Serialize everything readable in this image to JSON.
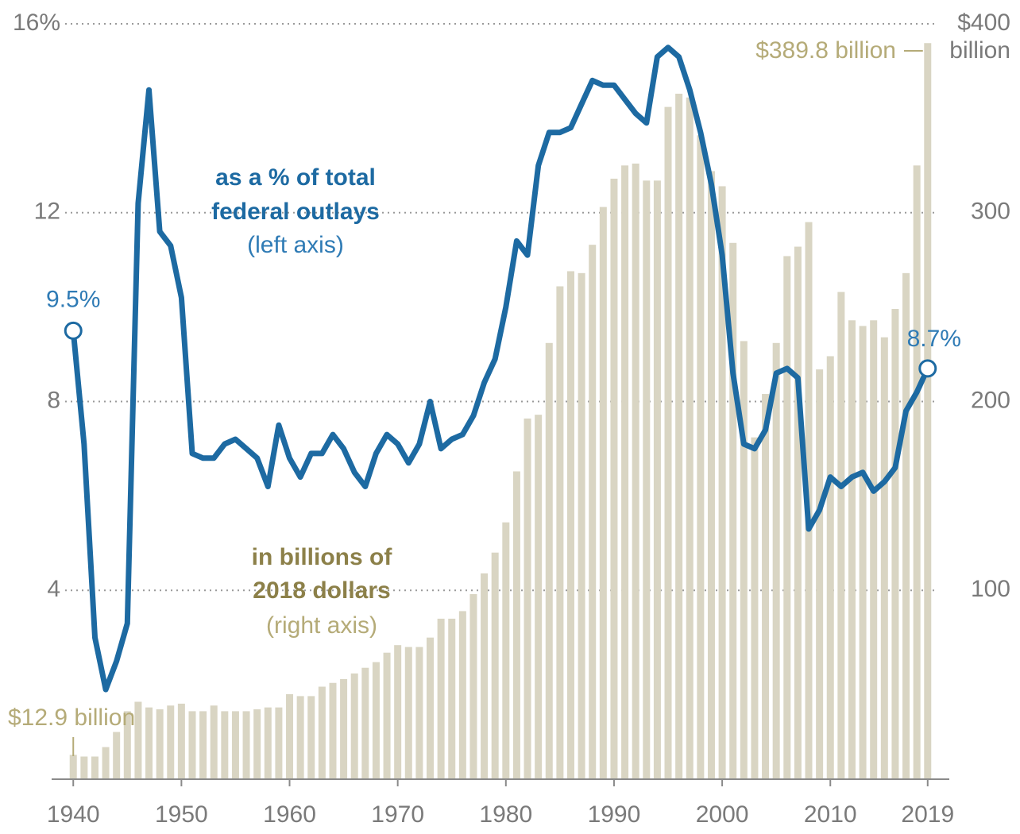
{
  "chart_data": {
    "type": "bar-line",
    "x": [
      1940,
      1941,
      1942,
      1943,
      1944,
      1945,
      1946,
      1947,
      1948,
      1949,
      1950,
      1951,
      1952,
      1953,
      1954,
      1955,
      1956,
      1957,
      1958,
      1959,
      1960,
      1961,
      1962,
      1963,
      1964,
      1965,
      1966,
      1967,
      1968,
      1969,
      1970,
      1971,
      1972,
      1973,
      1974,
      1975,
      1976,
      1977,
      1978,
      1979,
      1980,
      1981,
      1982,
      1983,
      1984,
      1985,
      1986,
      1987,
      1988,
      1989,
      1990,
      1991,
      1992,
      1993,
      1994,
      1995,
      1996,
      1997,
      1998,
      1999,
      2000,
      2001,
      2002,
      2003,
      2004,
      2005,
      2006,
      2007,
      2008,
      2009,
      2010,
      2011,
      2012,
      2013,
      2014,
      2015,
      2016,
      2017,
      2018,
      2019
    ],
    "xlim": [
      1938,
      2021
    ],
    "xticks": [
      1940,
      1950,
      1960,
      1970,
      1980,
      1990,
      2000,
      2010,
      2019
    ],
    "ylim": [
      0,
      16
    ],
    "yticks": [
      {
        "value": 16,
        "label": "16%"
      },
      12,
      8,
      4
    ],
    "y2lim": [
      0,
      400
    ],
    "y2ticks": [
      {
        "value": 400,
        "label": "$400"
      },
      300,
      200,
      100
    ],
    "y2unit": "billion",
    "grid": true,
    "series": [
      {
        "name_lines": [
          "in billions of",
          "2018 dollars"
        ],
        "note": "(right axis)",
        "axis": "y2",
        "kind": "bar",
        "color": "#d9d5c3",
        "label_color": "#8c8049",
        "end_color": "#b5ab78",
        "start_label": "$12.9 billion",
        "end_label": "$389.8 billion",
        "values": [
          12.9,
          12,
          12,
          17,
          25,
          36,
          41,
          38,
          37,
          39,
          40,
          36,
          36,
          39,
          36,
          36,
          36,
          37,
          38,
          38,
          45,
          44,
          44,
          49,
          51,
          53,
          56,
          59,
          62,
          67,
          71,
          70,
          70,
          75,
          85,
          85,
          89,
          98,
          109,
          120,
          136,
          163,
          191,
          193,
          231,
          261,
          269,
          268,
          283,
          303,
          318,
          325,
          326,
          317,
          317,
          356,
          363,
          361,
          341,
          322,
          314,
          284,
          232,
          181,
          204,
          231,
          277,
          282,
          295,
          217,
          224,
          258,
          243,
          240,
          243,
          234,
          249,
          268,
          325,
          389.8
        ]
      },
      {
        "name_lines": [
          "as a % of total",
          "federal outlays"
        ],
        "note": "(left axis)",
        "axis": "y",
        "kind": "line",
        "color": "#1d6aa2",
        "label_color": "#1d6aa2",
        "end_color": "#2f7bb5",
        "start_label": "9.5%",
        "end_label": "8.7%",
        "values": [
          9.5,
          7.1,
          3.0,
          1.9,
          2.5,
          3.3,
          12.2,
          14.6,
          11.6,
          11.3,
          10.2,
          6.9,
          6.8,
          6.8,
          7.1,
          7.2,
          7.0,
          6.8,
          6.2,
          7.5,
          6.8,
          6.4,
          6.9,
          6.9,
          7.3,
          7.0,
          6.5,
          6.2,
          6.9,
          7.3,
          7.1,
          6.7,
          7.1,
          8.0,
          7.0,
          7.2,
          7.3,
          7.7,
          8.4,
          8.9,
          10.0,
          11.4,
          11.1,
          13.0,
          13.7,
          13.7,
          13.8,
          14.3,
          14.8,
          14.7,
          14.7,
          14.4,
          14.1,
          13.9,
          15.3,
          15.5,
          15.3,
          14.6,
          13.7,
          12.6,
          11.1,
          8.6,
          7.1,
          7.0,
          7.4,
          8.6,
          8.7,
          8.5,
          5.3,
          5.7,
          6.4,
          6.2,
          6.4,
          6.5,
          6.1,
          6.3,
          6.6,
          7.8,
          8.2,
          8.7
        ]
      }
    ]
  }
}
